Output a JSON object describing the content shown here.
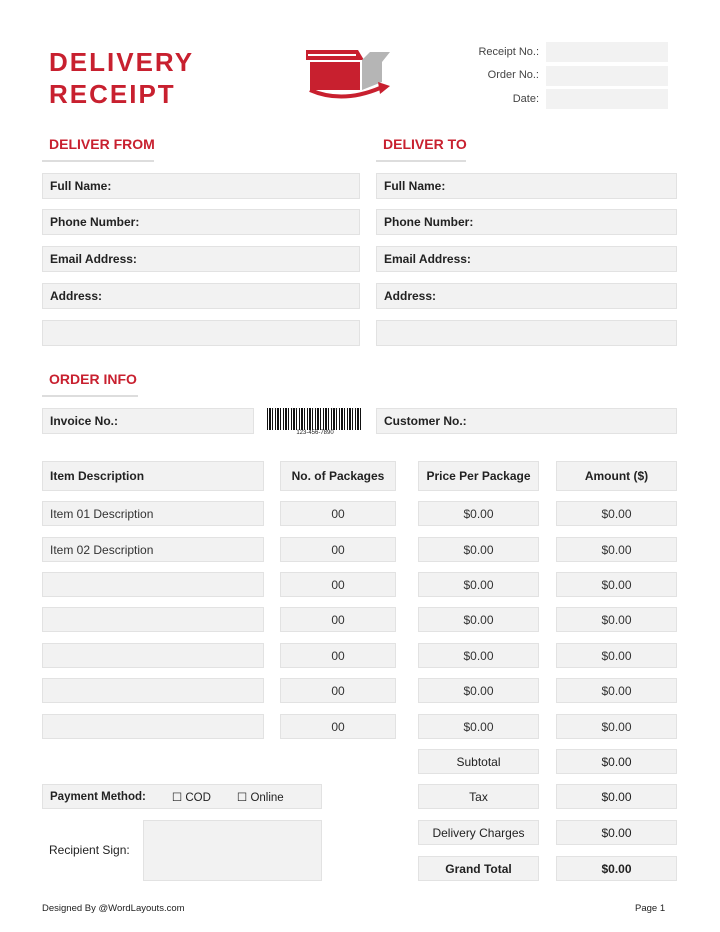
{
  "header": {
    "title_line1": "DELIVERY",
    "title_line2": "RECEIPT",
    "receipt_no_label": "Receipt No.:",
    "order_no_label": "Order No.:",
    "date_label": "Date:",
    "accent": "#c8202f"
  },
  "deliver_from": {
    "heading": "DELIVER FROM",
    "full_name": "Full Name:",
    "phone": "Phone Number:",
    "email": "Email Address:",
    "address": "Address:"
  },
  "deliver_to": {
    "heading": "DELIVER TO",
    "full_name": "Full Name:",
    "phone": "Phone Number:",
    "email": "Email Address:",
    "address": "Address:"
  },
  "order_info": {
    "heading": "ORDER INFO",
    "invoice_label": "Invoice No.:",
    "customer_label": "Customer No.:",
    "barcode_number": "123-456-7890"
  },
  "table": {
    "headers": [
      "Item Description",
      "No. of Packages",
      "Price Per Package",
      "Amount ($)"
    ],
    "rows": [
      [
        "Item 01 Description",
        "00",
        "$0.00",
        "$0.00"
      ],
      [
        "Item 02 Description",
        "00",
        "$0.00",
        "$0.00"
      ],
      [
        "",
        "00",
        "$0.00",
        "$0.00"
      ],
      [
        "",
        "00",
        "$0.00",
        "$0.00"
      ],
      [
        "",
        "00",
        "$0.00",
        "$0.00"
      ],
      [
        "",
        "00",
        "$0.00",
        "$0.00"
      ],
      [
        "",
        "00",
        "$0.00",
        "$0.00"
      ]
    ]
  },
  "totals": {
    "subtotal_label": "Subtotal",
    "subtotal": "$0.00",
    "tax_label": "Tax",
    "tax": "$0.00",
    "delivery_label": "Delivery Charges",
    "delivery": "$0.00",
    "grand_label": "Grand Total",
    "grand": "$0.00"
  },
  "payment": {
    "label": "Payment Method:",
    "cod": "COD",
    "online": "Online"
  },
  "sign": {
    "label": "Recipient Sign:"
  },
  "footer": {
    "credit": "Designed By @WordLayouts.com",
    "page": "Page 1"
  }
}
